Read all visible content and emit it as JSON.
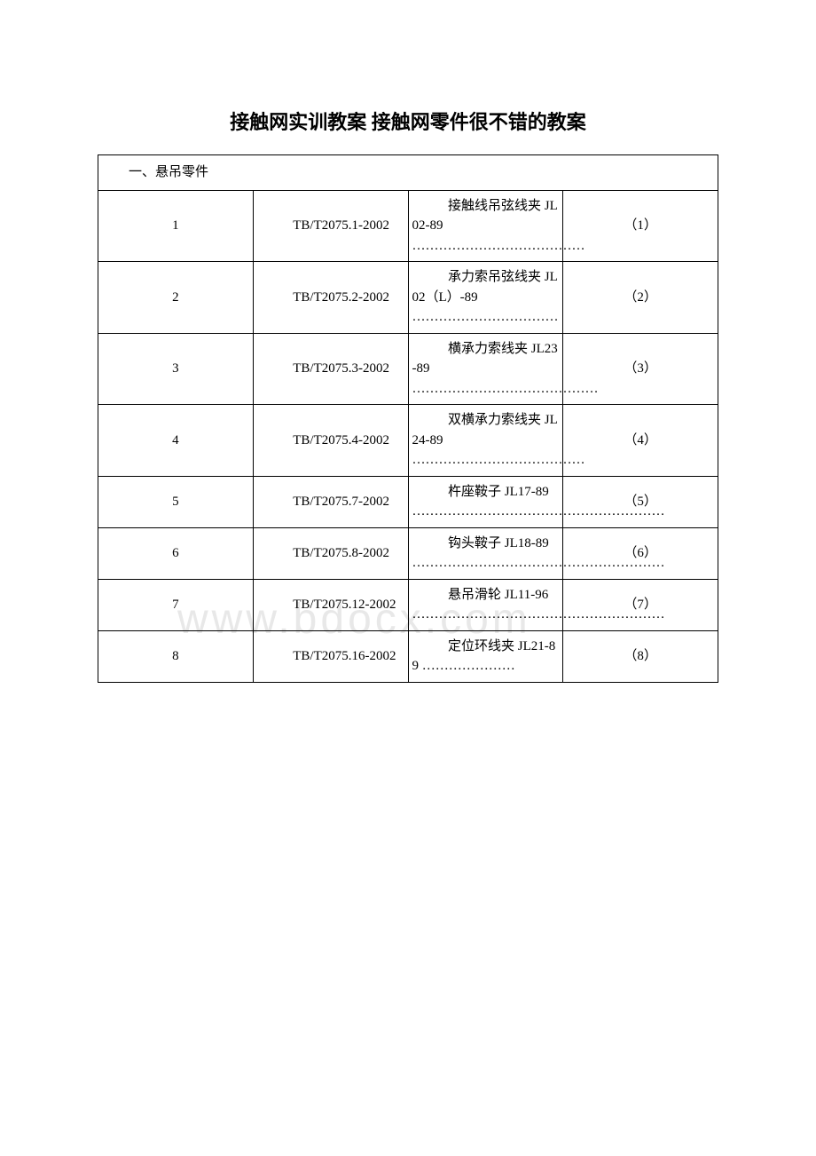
{
  "title": "接触网实训教案 接触网零件很不错的教案",
  "section_header": "一、悬吊零件",
  "watermark_text": "www.bdocx.com",
  "columns": {
    "num_width": "15%",
    "std_width": "25%",
    "desc_width": "32%",
    "ref_width": "28%"
  },
  "colors": {
    "text": "#000000",
    "background": "#ffffff",
    "border": "#000000",
    "watermark": "#e8e8e8"
  },
  "typography": {
    "title_fontsize": 22,
    "title_weight": "bold",
    "cell_fontsize": 15,
    "font_family": "SimSun"
  },
  "rows": [
    {
      "num": "1",
      "std": "TB/T2075.1-2002",
      "desc": "接触线吊弦线夹 JL02-89 …………………………………",
      "ref": "（1）"
    },
    {
      "num": "2",
      "std": "TB/T2075.2-2002",
      "desc": "承力索吊弦线夹 JL02（L）-89 ……………………………",
      "ref": "（2）"
    },
    {
      "num": "3",
      "std": "TB/T2075.3-2002",
      "desc": "横承力索线夹 JL23-89 ……………………………………",
      "ref": "（3）"
    },
    {
      "num": "4",
      "std": "TB/T2075.4-2002",
      "desc": "双横承力索线夹 JL24-89 …………………………………",
      "ref": "（4）"
    },
    {
      "num": "5",
      "std": "TB/T2075.7-2002",
      "desc": "杵座鞍子 JL17-89 …………………………………………………",
      "ref": "（5）"
    },
    {
      "num": "6",
      "std": "TB/T2075.8-2002",
      "desc": "钩头鞍子 JL18-89 …………………………………………………",
      "ref": "（6）"
    },
    {
      "num": "7",
      "std": "TB/T2075.12-2002",
      "desc": "悬吊滑轮 JL11-96 …………………………………………………",
      "ref": "（7）"
    },
    {
      "num": "8",
      "std": "TB/T2075.16-2002",
      "desc": "定位环线夹 JL21-89 …………………",
      "ref": "（8）"
    }
  ]
}
